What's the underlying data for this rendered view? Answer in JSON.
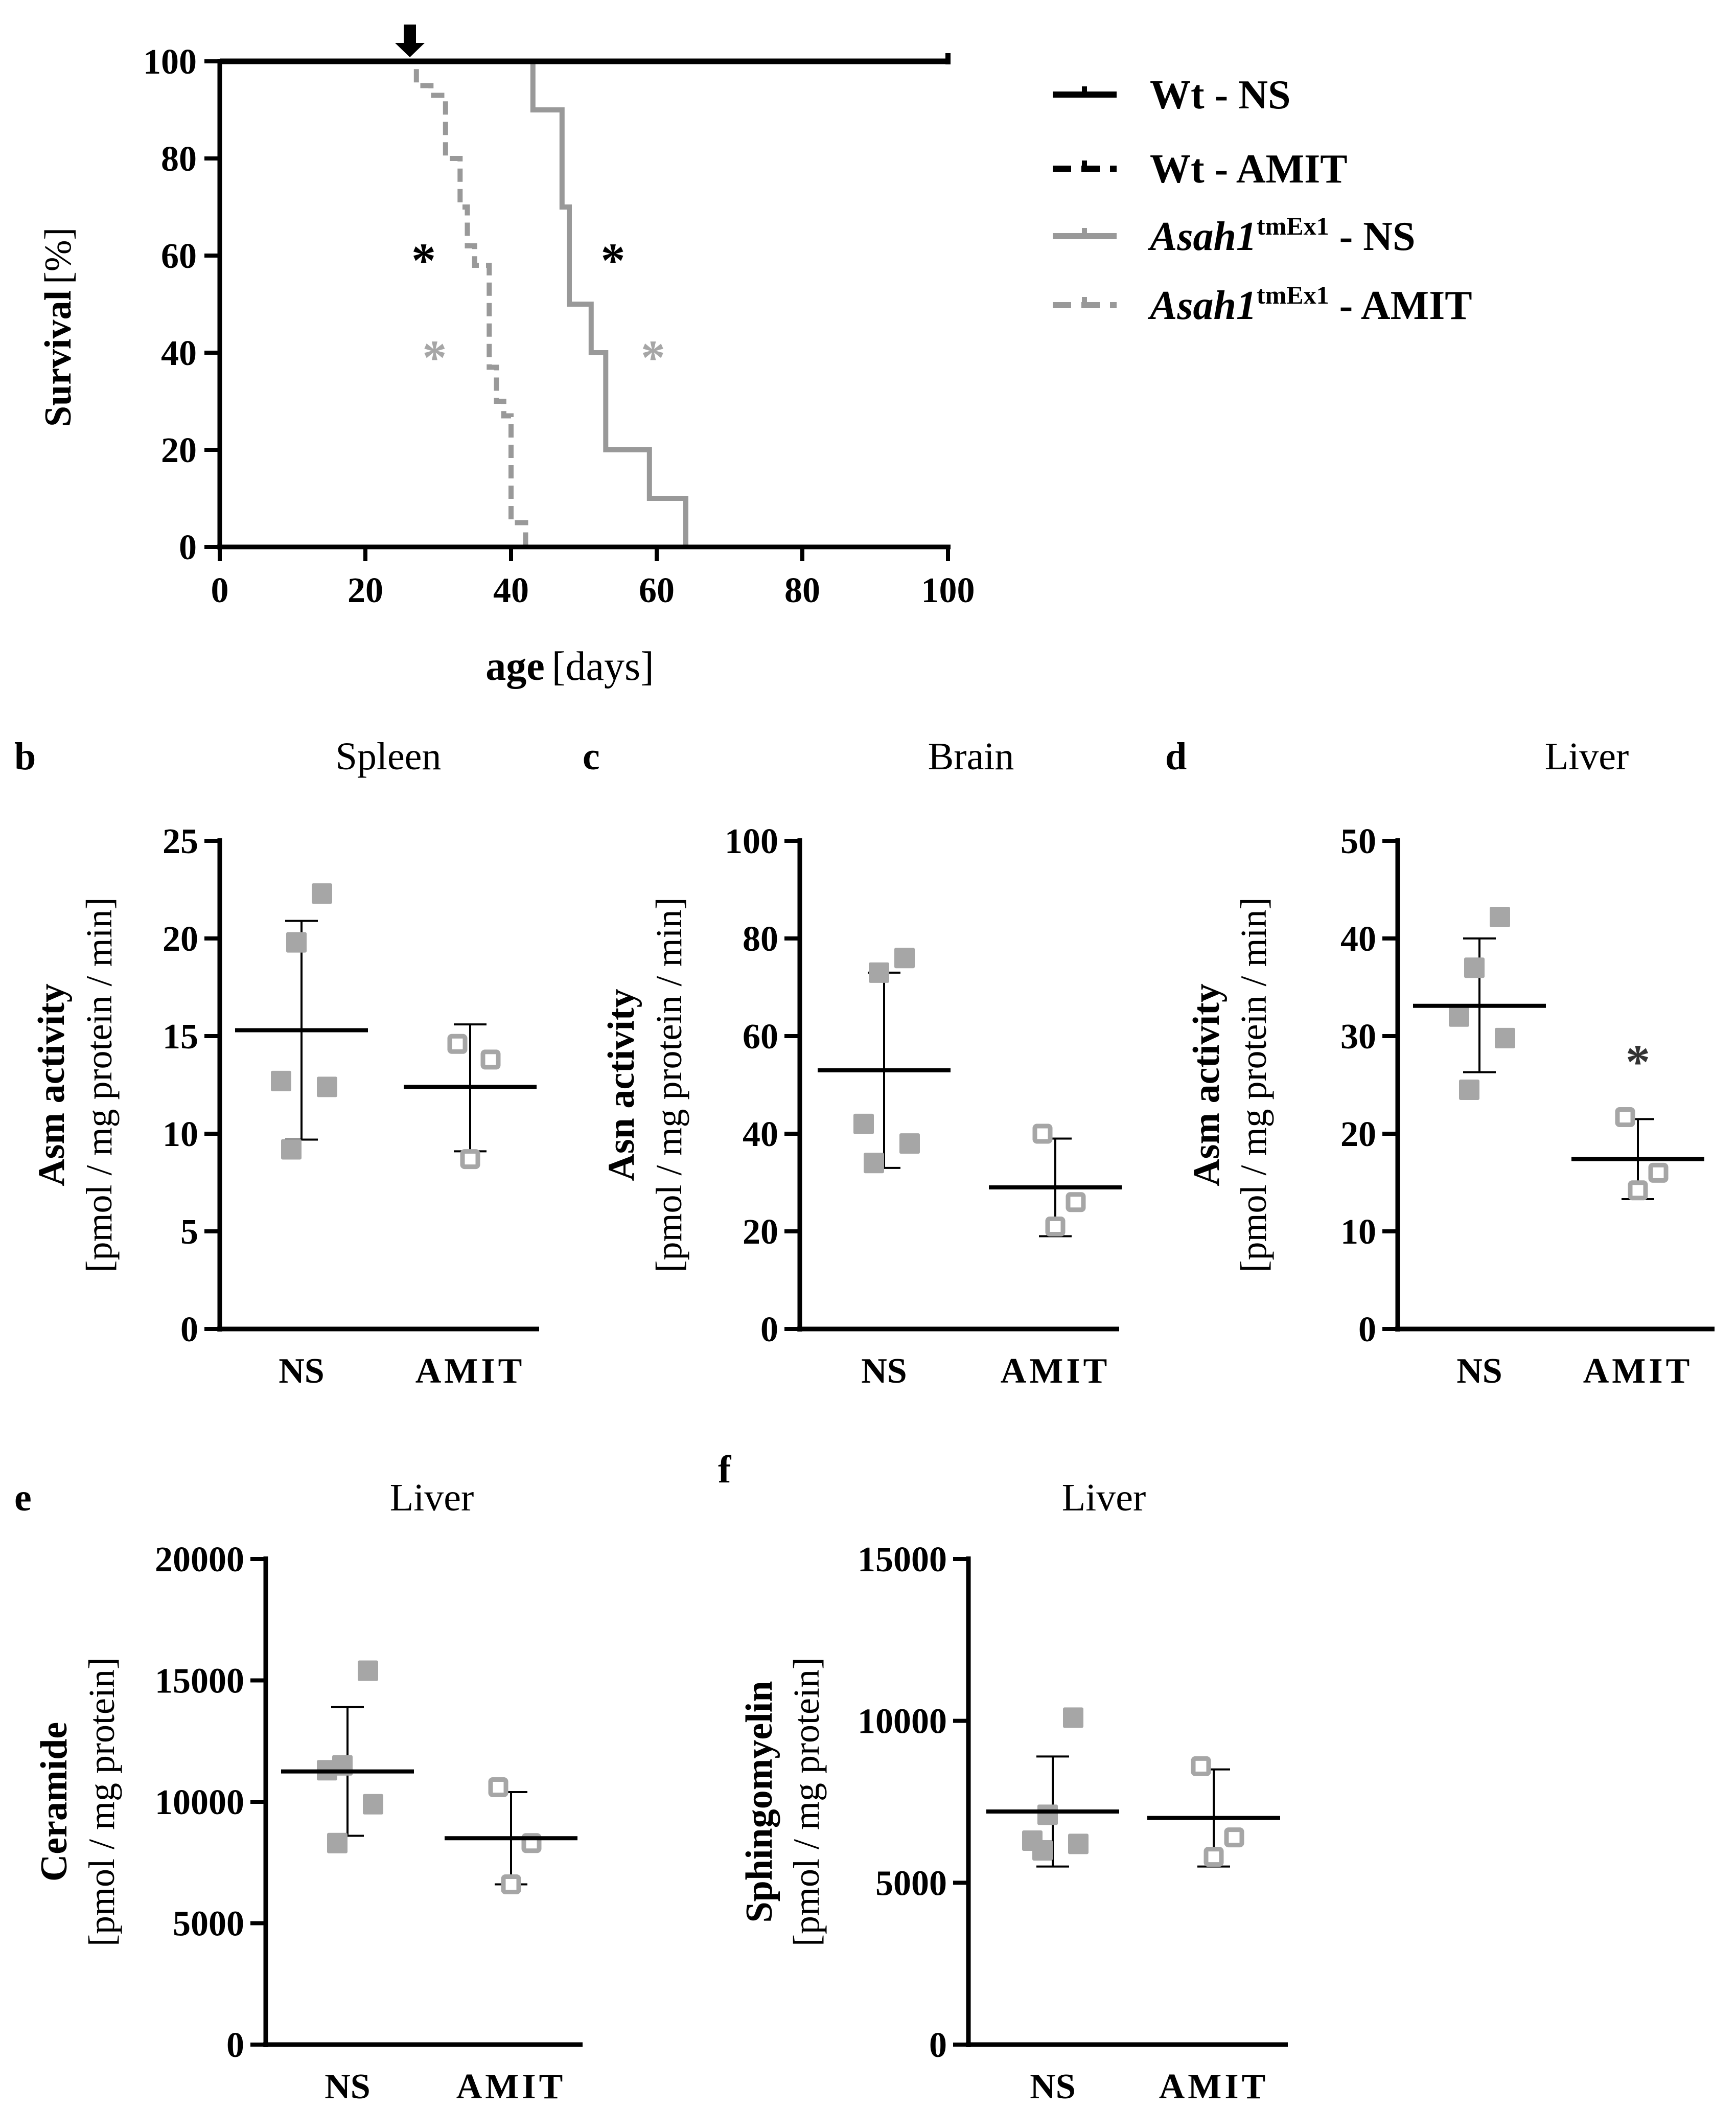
{
  "colors": {
    "black": "#000000",
    "gray": "#999999",
    "gray_dot": "#a6a6a6"
  },
  "chart_data": [
    {
      "id": "a",
      "type": "line",
      "subtype": "kaplan-meier",
      "xlabel_bold": "age",
      "xlabel_rest": "[days]",
      "ylabel_bold": "Survival",
      "ylabel_rest": "[%]",
      "xlim": [
        0,
        100
      ],
      "ylim": [
        0,
        100
      ],
      "xticks": [
        "0",
        "20",
        "40",
        "60",
        "80",
        "100"
      ],
      "yticks": [
        "0",
        "20",
        "40",
        "60",
        "80",
        "100"
      ],
      "treatment_start_day": 26,
      "series": [
        {
          "name": "Wt - NS",
          "color": "#000000",
          "dashed": false,
          "steps": [
            [
              0,
              100
            ],
            [
              100,
              100
            ]
          ]
        },
        {
          "name": "Wt - AMIT",
          "color": "#000000",
          "dashed": true,
          "steps": [
            [
              0,
              100
            ],
            [
              100,
              100
            ]
          ]
        },
        {
          "name_italic": "Asah1",
          "name_sup": "tmEx1",
          "name_rest": " - NS",
          "color": "#999999",
          "dashed": false,
          "steps": [
            [
              0,
              100
            ],
            [
              43,
              100
            ],
            [
              43,
              90
            ],
            [
              47,
              90
            ],
            [
              47,
              70
            ],
            [
              48,
              70
            ],
            [
              48,
              50
            ],
            [
              51,
              50
            ],
            [
              51,
              40
            ],
            [
              53,
              40
            ],
            [
              53,
              20
            ],
            [
              59,
              20
            ],
            [
              59,
              10
            ],
            [
              64,
              10
            ],
            [
              64,
              0
            ]
          ]
        },
        {
          "name_italic": "Asah1",
          "name_sup": "tmEx1",
          "name_rest": " - AMIT",
          "color": "#999999",
          "dashed": true,
          "steps": [
            [
              0,
              100
            ],
            [
              27,
              100
            ],
            [
              27,
              95
            ],
            [
              29,
              95
            ],
            [
              29,
              93
            ],
            [
              31,
              93
            ],
            [
              31,
              80
            ],
            [
              33,
              80
            ],
            [
              33,
              70
            ],
            [
              34,
              70
            ],
            [
              34,
              62
            ],
            [
              35,
              62
            ],
            [
              35,
              58
            ],
            [
              37,
              58
            ],
            [
              37,
              37
            ],
            [
              38,
              37
            ],
            [
              38,
              30
            ],
            [
              39,
              30
            ],
            [
              39,
              27
            ],
            [
              40,
              27
            ],
            [
              40,
              5
            ],
            [
              42,
              5
            ],
            [
              42,
              0
            ]
          ]
        }
      ],
      "annotations": [
        {
          "text": "*",
          "x": 28,
          "y": 60,
          "color": "#000000"
        },
        {
          "text": "*",
          "x": 54,
          "y": 60,
          "color": "#000000"
        },
        {
          "text": "*",
          "x": 29.5,
          "y": 40,
          "color": "#a6a6a6"
        },
        {
          "text": "*",
          "x": 59.5,
          "y": 40,
          "color": "#a6a6a6"
        }
      ]
    },
    {
      "id": "b",
      "type": "scatter",
      "title": "Spleen",
      "ylabel_bold": "Asm activity",
      "ylabel_rest": "[pmol / mg protein / min]",
      "ylim": [
        0,
        25
      ],
      "yticks": [
        0,
        5,
        10,
        15,
        20,
        25
      ],
      "categories": [
        "NS",
        "AMIT"
      ],
      "groups": [
        {
          "name": "NS",
          "points": [
            22.3,
            19.8,
            12.7,
            12.4,
            9.2
          ],
          "mean": 15.3,
          "sd_low": 9.7,
          "sd_high": 20.9,
          "filled": true
        },
        {
          "name": "AMIT",
          "points": [
            14.6,
            13.8,
            8.7
          ],
          "mean": 12.4,
          "sd_low": 9.1,
          "sd_high": 15.6,
          "filled": false
        }
      ]
    },
    {
      "id": "c",
      "type": "scatter",
      "title": "Brain",
      "ylabel_bold": "Asn activity",
      "ylabel_rest": "[pmol / mg protein / min]",
      "ylim": [
        0,
        100
      ],
      "yticks": [
        0,
        20,
        40,
        60,
        80,
        100
      ],
      "categories": [
        "NS",
        "AMIT"
      ],
      "groups": [
        {
          "name": "NS",
          "points": [
            76,
            73,
            42,
            38,
            34
          ],
          "mean": 53,
          "sd_low": 33,
          "sd_high": 73,
          "filled": true
        },
        {
          "name": "AMIT",
          "points": [
            40,
            26,
            21
          ],
          "mean": 29,
          "sd_low": 19,
          "sd_high": 39,
          "filled": false
        }
      ]
    },
    {
      "id": "d",
      "type": "scatter",
      "title": "Liver",
      "ylabel_bold": "Asm activity",
      "ylabel_rest": "[pmol / mg protein / min]",
      "ylim": [
        0,
        50
      ],
      "yticks": [
        0,
        10,
        20,
        30,
        40,
        50
      ],
      "categories": [
        "NS",
        "AMIT"
      ],
      "significance": {
        "text": "*",
        "group": "AMIT",
        "y": 28
      },
      "groups": [
        {
          "name": "NS",
          "points": [
            42.2,
            37,
            32,
            29.8,
            24.5
          ],
          "mean": 33.1,
          "sd_low": 26.3,
          "sd_high": 40,
          "filled": true
        },
        {
          "name": "AMIT",
          "points": [
            21.7,
            16,
            14.2
          ],
          "mean": 17.4,
          "sd_low": 13.3,
          "sd_high": 21.5,
          "filled": false
        }
      ]
    },
    {
      "id": "e",
      "type": "scatter",
      "title": "Liver",
      "ylabel_bold": "Ceramide",
      "ylabel_rest": "[pmol / mg protein]",
      "ylim": [
        0,
        20000
      ],
      "yticks": [
        0,
        5000,
        10000,
        15000,
        20000
      ],
      "categories": [
        "NS",
        "AMIT"
      ],
      "groups": [
        {
          "name": "NS",
          "points": [
            15400,
            11500,
            11300,
            9900,
            8300
          ],
          "mean": 11250,
          "sd_low": 8600,
          "sd_high": 13900,
          "filled": true
        },
        {
          "name": "AMIT",
          "points": [
            10600,
            8300,
            6600
          ],
          "mean": 8500,
          "sd_low": 6600,
          "sd_high": 10400,
          "filled": false
        }
      ]
    },
    {
      "id": "f",
      "type": "scatter",
      "title": "Liver",
      "ylabel_bold": "Sphingomyelin",
      "ylabel_rest": "[pmol / mg protein]",
      "ylim": [
        0,
        15000
      ],
      "yticks": [
        0,
        5000,
        10000,
        15000
      ],
      "categories": [
        "NS",
        "AMIT"
      ],
      "groups": [
        {
          "name": "NS",
          "points": [
            10100,
            7100,
            6300,
            6200,
            6000
          ],
          "mean": 7200,
          "sd_low": 5500,
          "sd_high": 8900,
          "filled": true
        },
        {
          "name": "AMIT",
          "points": [
            8600,
            6400,
            5800
          ],
          "mean": 7000,
          "sd_low": 5500,
          "sd_high": 8500,
          "filled": false
        }
      ]
    }
  ]
}
